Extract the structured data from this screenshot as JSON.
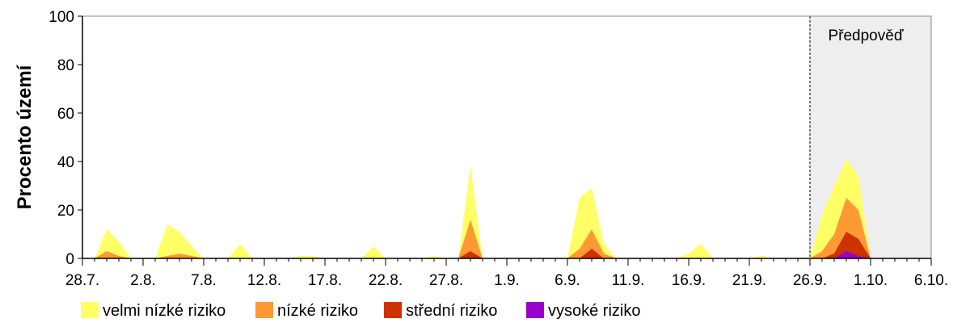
{
  "chart_data": {
    "type": "area",
    "ylabel": "Procento území",
    "ylim": [
      0,
      100
    ],
    "yticks": [
      0,
      20,
      40,
      60,
      80,
      100
    ],
    "x_tick_labels": [
      "28.7.",
      "2.8.",
      "7.8.",
      "12.8.",
      "17.8.",
      "22.8.",
      "27.8.",
      "1.9.",
      "6.9.",
      "11.9.",
      "16.9.",
      "21.9.",
      "26.9.",
      "1.10.",
      "6.10."
    ],
    "x": [
      "28.7.",
      "29.7.",
      "30.7.",
      "31.7.",
      "1.8.",
      "2.8.",
      "3.8.",
      "4.8.",
      "5.8.",
      "6.8.",
      "7.8.",
      "8.8.",
      "9.8.",
      "10.8.",
      "11.8.",
      "12.8.",
      "13.8.",
      "14.8.",
      "15.8.",
      "16.8.",
      "17.8.",
      "18.8.",
      "19.8.",
      "20.8.",
      "21.8.",
      "22.8.",
      "23.8.",
      "24.8.",
      "25.8.",
      "26.8.",
      "27.8.",
      "28.8.",
      "29.8.",
      "30.8.",
      "31.8.",
      "1.9.",
      "2.9.",
      "3.9.",
      "4.9.",
      "5.9.",
      "6.9.",
      "7.9.",
      "8.9.",
      "9.9.",
      "10.9.",
      "11.9.",
      "12.9.",
      "13.9.",
      "14.9.",
      "15.9.",
      "16.9.",
      "17.9.",
      "18.9.",
      "19.9.",
      "20.9.",
      "21.9.",
      "22.9.",
      "23.9.",
      "24.9.",
      "25.9.",
      "26.9.",
      "27.9.",
      "28.9.",
      "29.9.",
      "30.9.",
      "1.10.",
      "2.10.",
      "3.10.",
      "4.10.",
      "5.10.",
      "6.10."
    ],
    "stacked": false,
    "series": [
      {
        "name": "velmi nízké riziko",
        "color": "#ffff66",
        "values": [
          0,
          0,
          12,
          7,
          0,
          0,
          0,
          14,
          11,
          5,
          0,
          0,
          0,
          6,
          0,
          0,
          0,
          0,
          1,
          1,
          0,
          0,
          0,
          0,
          5,
          0,
          0,
          0,
          0,
          1,
          0,
          0,
          38,
          0,
          0,
          0,
          0,
          0,
          0,
          0,
          0,
          25,
          29,
          6,
          0,
          0,
          0,
          0,
          0,
          0,
          2,
          6,
          0,
          0,
          0,
          0,
          1,
          0,
          0,
          0,
          0,
          18,
          30,
          41,
          34,
          0,
          0,
          0,
          0,
          0,
          0
        ]
      },
      {
        "name": "nízké riziko",
        "color": "#ff9933",
        "values": [
          0,
          0,
          3,
          1,
          0,
          0,
          0,
          1,
          2,
          1,
          0,
          0,
          0,
          0,
          0,
          0,
          0,
          0,
          0,
          0,
          0,
          0,
          0,
          0,
          0,
          0,
          0,
          0,
          0,
          0,
          0,
          0,
          16,
          0,
          0,
          0,
          0,
          0,
          0,
          0,
          0,
          4,
          12,
          2,
          0,
          0,
          0,
          0,
          0,
          0,
          0,
          0,
          0,
          0,
          0,
          0,
          0,
          0,
          0,
          0,
          0,
          3,
          10,
          25,
          20,
          0,
          0,
          0,
          0,
          0,
          0
        ]
      },
      {
        "name": "střední riziko",
        "color": "#cc3300",
        "values": [
          0,
          0,
          0,
          0,
          0,
          0,
          0,
          0,
          0,
          0,
          0,
          0,
          0,
          0,
          0,
          0,
          0,
          0,
          0,
          0,
          0,
          0,
          0,
          0,
          0,
          0,
          0,
          0,
          0,
          0,
          0,
          0,
          3,
          0,
          0,
          0,
          0,
          0,
          0,
          0,
          0,
          0,
          4,
          0,
          0,
          0,
          0,
          0,
          0,
          0,
          0,
          0,
          0,
          0,
          0,
          0,
          0,
          0,
          0,
          0,
          0,
          0,
          2,
          11,
          8,
          0,
          0,
          0,
          0,
          0,
          0
        ]
      },
      {
        "name": "vysoké riziko",
        "color": "#9900cc",
        "values": [
          0,
          0,
          0,
          0,
          0,
          0,
          0,
          0,
          0,
          0,
          0,
          0,
          0,
          0,
          0,
          0,
          0,
          0,
          0,
          0,
          0,
          0,
          0,
          0,
          0,
          0,
          0,
          0,
          0,
          0,
          0,
          0,
          0,
          0,
          0,
          0,
          0,
          0,
          0,
          0,
          0,
          0,
          0,
          0,
          0,
          0,
          0,
          0,
          0,
          0,
          0,
          0,
          0,
          0,
          0,
          0,
          0,
          0,
          0,
          0,
          0,
          0,
          0,
          3,
          1,
          0,
          0,
          0,
          0,
          0,
          0
        ]
      }
    ],
    "forecast": {
      "label": "Předpověď",
      "start": "26.9.",
      "end": "6.10.",
      "color": "#eeeeee"
    },
    "grid": false,
    "legend_position": "bottom-left"
  }
}
